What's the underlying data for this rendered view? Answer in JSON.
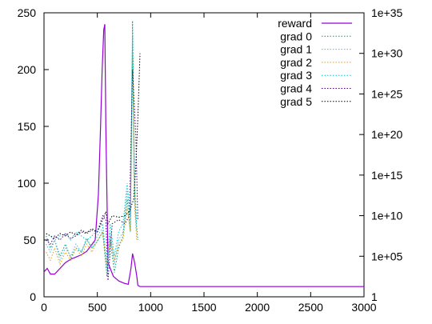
{
  "chart_data": {
    "type": "line",
    "title": "",
    "xlabel": "",
    "ylabel": "",
    "xlim": [
      0,
      3000
    ],
    "ylim": [
      0,
      250
    ],
    "y2lim_log10": [
      0,
      35
    ],
    "y2_scale": "log",
    "grid": false,
    "legend_position": "top-right",
    "x_ticks": [
      "0",
      "500",
      "1000",
      "1500",
      "2000",
      "2500",
      "3000"
    ],
    "y_ticks": [
      "0",
      "50",
      "100",
      "150",
      "200",
      "250"
    ],
    "y2_ticks": [
      "1",
      "1e+05",
      "1e+10",
      "1e+15",
      "1e+20",
      "1e+25",
      "1e+30",
      "1e+35"
    ],
    "series": [
      {
        "name": "reward",
        "axis": "y",
        "color": "#9400d3",
        "dash": "solid",
        "x": [
          0,
          30,
          60,
          100,
          150,
          200,
          250,
          300,
          350,
          400,
          440,
          480,
          510,
          530,
          545,
          560,
          570,
          580,
          600,
          650,
          700,
          750,
          790,
          815,
          830,
          850,
          870,
          880,
          900,
          1000,
          1500,
          2000,
          2500,
          3000
        ],
        "y": [
          22,
          25,
          20,
          20,
          25,
          30,
          33,
          35,
          37,
          40,
          45,
          50,
          90,
          150,
          200,
          235,
          240,
          150,
          30,
          18,
          14,
          12,
          11,
          25,
          38,
          30,
          18,
          10,
          9,
          9,
          9,
          9,
          9,
          9
        ]
      },
      {
        "name": "grad 0",
        "axis": "y2",
        "color": "#009e73",
        "dash": "dotted",
        "x": [
          20,
          60,
          100,
          150,
          200,
          250,
          300,
          350,
          400,
          450,
          500,
          550,
          590,
          620,
          660,
          700,
          740,
          780,
          810,
          830,
          845,
          860,
          880
        ],
        "y": [
          7.5,
          6.0,
          7.0,
          5.0,
          6.5,
          4.8,
          6.0,
          5.5,
          7.2,
          6.0,
          6.8,
          8.0,
          2.5,
          7.0,
          3.0,
          6.0,
          7.5,
          12.0,
          8.0,
          34.0,
          15.0,
          10.0,
          7.0
        ]
      },
      {
        "name": "grad 1",
        "axis": "y2",
        "color": "#56b4e9",
        "dash": "dotted",
        "x": [
          20,
          60,
          100,
          150,
          200,
          250,
          300,
          350,
          400,
          450,
          500,
          550,
          590,
          620,
          660,
          700,
          740,
          780,
          810,
          830,
          850,
          870
        ],
        "y": [
          6.5,
          5.5,
          7.0,
          4.5,
          6.0,
          5.0,
          6.5,
          5.5,
          7.0,
          6.0,
          7.5,
          8.5,
          3.0,
          8.0,
          4.0,
          7.0,
          8.0,
          13.0,
          9.0,
          32.0,
          12.0,
          8.0
        ]
      },
      {
        "name": "grad 2",
        "axis": "y2",
        "color": "#e69f00",
        "dash": "dotted",
        "x": [
          20,
          60,
          100,
          150,
          200,
          250,
          300,
          350,
          400,
          450,
          500,
          550,
          590,
          620,
          660,
          700,
          740,
          780,
          810,
          830,
          850,
          870
        ],
        "y": [
          5.5,
          4.5,
          6.0,
          4.0,
          5.5,
          4.5,
          6.0,
          5.0,
          6.5,
          5.5,
          7.0,
          8.0,
          3.5,
          7.5,
          4.5,
          6.5,
          7.0,
          11.0,
          8.0,
          30.0,
          11.0,
          7.0
        ]
      },
      {
        "name": "grad 3",
        "axis": "y2",
        "color": "#00ced1",
        "dash": "dotted",
        "x": [
          20,
          60,
          100,
          150,
          200,
          250,
          300,
          350,
          400,
          450,
          500,
          550,
          590,
          620,
          660,
          700,
          740,
          780,
          810,
          830,
          850,
          870
        ],
        "y": [
          7.8,
          7.5,
          7.0,
          7.5,
          7.8,
          7.0,
          8.0,
          7.5,
          7.0,
          7.5,
          8.2,
          9.0,
          4.0,
          9.0,
          5.0,
          8.0,
          9.0,
          14.0,
          10.0,
          33.0,
          14.0,
          9.0
        ]
      },
      {
        "name": "grad 4",
        "axis": "y2",
        "color": "#4b0082",
        "dash": "dotted",
        "x": [
          20,
          60,
          100,
          150,
          200,
          250,
          300,
          350,
          400,
          450,
          500,
          550,
          580,
          600,
          640,
          700,
          760,
          800,
          830,
          860,
          880
        ],
        "y": [
          7.0,
          6.5,
          7.5,
          7.0,
          7.8,
          7.2,
          7.5,
          8.0,
          7.8,
          8.2,
          8.0,
          10.0,
          9.5,
          2.0,
          9.0,
          9.5,
          9.0,
          10.0,
          28.0,
          20.0,
          9.5
        ]
      },
      {
        "name": "grad 5",
        "axis": "y2",
        "color": "#000000",
        "dash": "dotted",
        "x": [
          20,
          60,
          100,
          150,
          200,
          250,
          300,
          350,
          400,
          450,
          500,
          550,
          580,
          600,
          640,
          700,
          760,
          800,
          840,
          860,
          880,
          900
        ],
        "y": [
          7.8,
          7.5,
          7.2,
          7.8,
          7.5,
          8.0,
          7.6,
          8.2,
          7.9,
          8.4,
          8.0,
          9.5,
          10.5,
          9.0,
          10.0,
          9.8,
          10.0,
          10.5,
          12.0,
          16.0,
          22.0,
          30.0
        ]
      }
    ]
  }
}
